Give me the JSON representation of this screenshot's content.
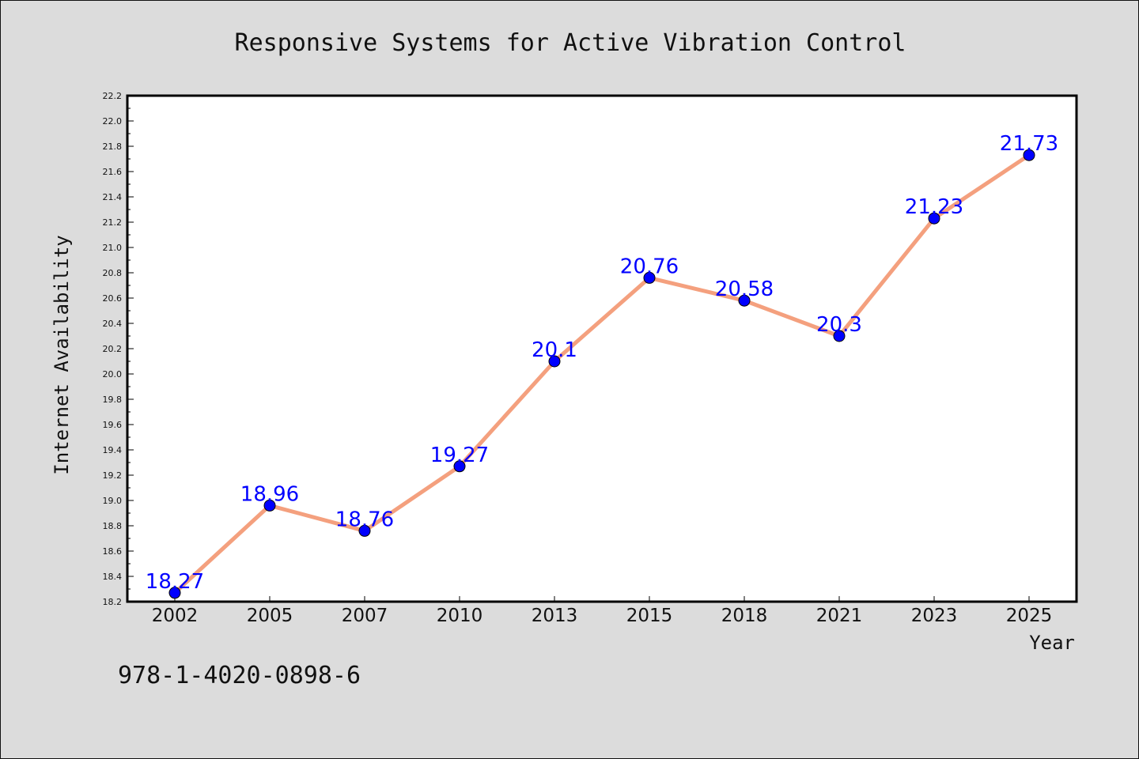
{
  "chart_data": {
    "type": "line",
    "title": "Responsive Systems for Active Vibration Control",
    "xlabel": "Year",
    "ylabel": "Internet Availability",
    "categories": [
      "2002",
      "2005",
      "2007",
      "2010",
      "2013",
      "2015",
      "2018",
      "2021",
      "2023",
      "2025"
    ],
    "series": [
      {
        "values": [
          18.27,
          18.96,
          18.76,
          19.27,
          20.1,
          20.76,
          20.58,
          20.3,
          21.23,
          21.73
        ],
        "labels": [
          "18.27",
          "18.96",
          "18.76",
          "19.27",
          "20.1",
          "20.76",
          "20.58",
          "20.3",
          "21.23",
          "21.73"
        ],
        "line_color": "#f4a07e",
        "marker_color": "#0000ff"
      }
    ],
    "ylim": [
      18.2,
      22.2
    ],
    "yticks": [
      "18.2",
      "18.4",
      "18.6",
      "18.8",
      "19.0",
      "19.2",
      "19.4",
      "19.6",
      "19.8",
      "20.0",
      "20.2",
      "20.4",
      "20.6",
      "20.8",
      "21.0",
      "21.2",
      "21.4",
      "21.6",
      "21.8",
      "22.0",
      "22.2"
    ],
    "grid": false,
    "annotation": "978-1-4020-0898-6"
  },
  "colors": {
    "background": "#dcdcdc",
    "plot_area": "#ffffff",
    "line": "#f4a07e",
    "marker": "#0000ff",
    "data_label": "#0000ff"
  }
}
